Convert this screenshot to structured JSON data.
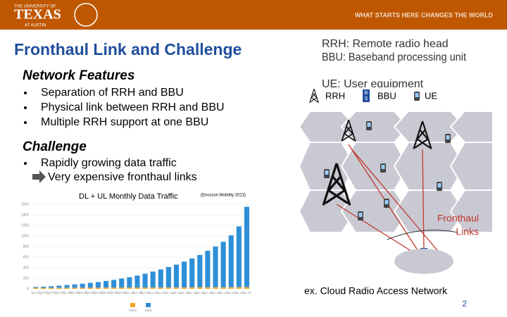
{
  "header": {
    "logo_line1": "THE UNIVERSITY OF",
    "logo_line2": "TEXAS",
    "logo_line3": "AT AUSTIN",
    "tagline": "WHAT STARTS HERE CHANGES THE WORLD"
  },
  "title": "Fronthaul Link and Challenge",
  "network_features": {
    "heading": "Network Features",
    "bullets": [
      "Separation of RRH and BBU",
      "Physical link between RRH and BBU",
      "Multiple RRH support at one BBU"
    ]
  },
  "challenge": {
    "heading": "Challenge",
    "bullets": [
      "Rapidly growing data traffic"
    ],
    "sub": "Very expensive fronthaul links"
  },
  "definitions": [
    "RRH: Remote radio head",
    "BBU: Baseband processing unit",
    "UE: User equipment"
  ],
  "legend": {
    "rrh": "RRH",
    "bbu": "BBU",
    "ue": "UE"
  },
  "icon_letters": [
    "B",
    "S"
  ],
  "diagram": {
    "fronthaul_label": [
      "Fronthaul",
      "Links"
    ],
    "caption": "ex. Cloud Radio Access Network"
  },
  "page_number": "2",
  "chart_data": {
    "type": "bar",
    "title": "DL + UL Monthly Data Traffic",
    "source": "(Ericsson Mobility 2013)",
    "categories": [
      "Q1 07",
      "Q2 07",
      "Q3 07",
      "Q4 07",
      "Q1 08",
      "Q2 08",
      "Q3 08",
      "Q4 08",
      "Q1 09",
      "Q2 09",
      "Q3 09",
      "Q4 09",
      "Q1 10",
      "Q2 10",
      "Q3 10",
      "Q4 10",
      "Q1 11",
      "Q2 11",
      "Q3 11",
      "Q4 11",
      "Q1 12",
      "Q2 12",
      "Q3 12",
      "Q4 12",
      "Q1 13",
      "Q2 13",
      "Q3 13",
      "Q4 13"
    ],
    "series": [
      {
        "name": "Voice",
        "color": "#f5a623",
        "values": [
          20,
          20,
          20,
          21,
          21,
          22,
          22,
          23,
          23,
          24,
          24,
          25,
          25,
          26,
          26,
          27,
          27,
          28,
          28,
          29,
          29,
          30,
          30,
          31,
          31,
          32,
          32,
          33
        ]
      },
      {
        "name": "Data",
        "color": "#2e8fd8",
        "values": [
          15,
          20,
          28,
          38,
          50,
          62,
          75,
          90,
          105,
          125,
          145,
          170,
          195,
          225,
          260,
          300,
          340,
          385,
          430,
          485,
          545,
          610,
          690,
          770,
          860,
          980,
          1150,
          1520
        ]
      }
    ],
    "stacked": true,
    "ylim": [
      0,
      1600
    ],
    "yticks": [
      0,
      200,
      400,
      600,
      800,
      1000,
      1200,
      1400,
      1600
    ],
    "grid": true
  }
}
